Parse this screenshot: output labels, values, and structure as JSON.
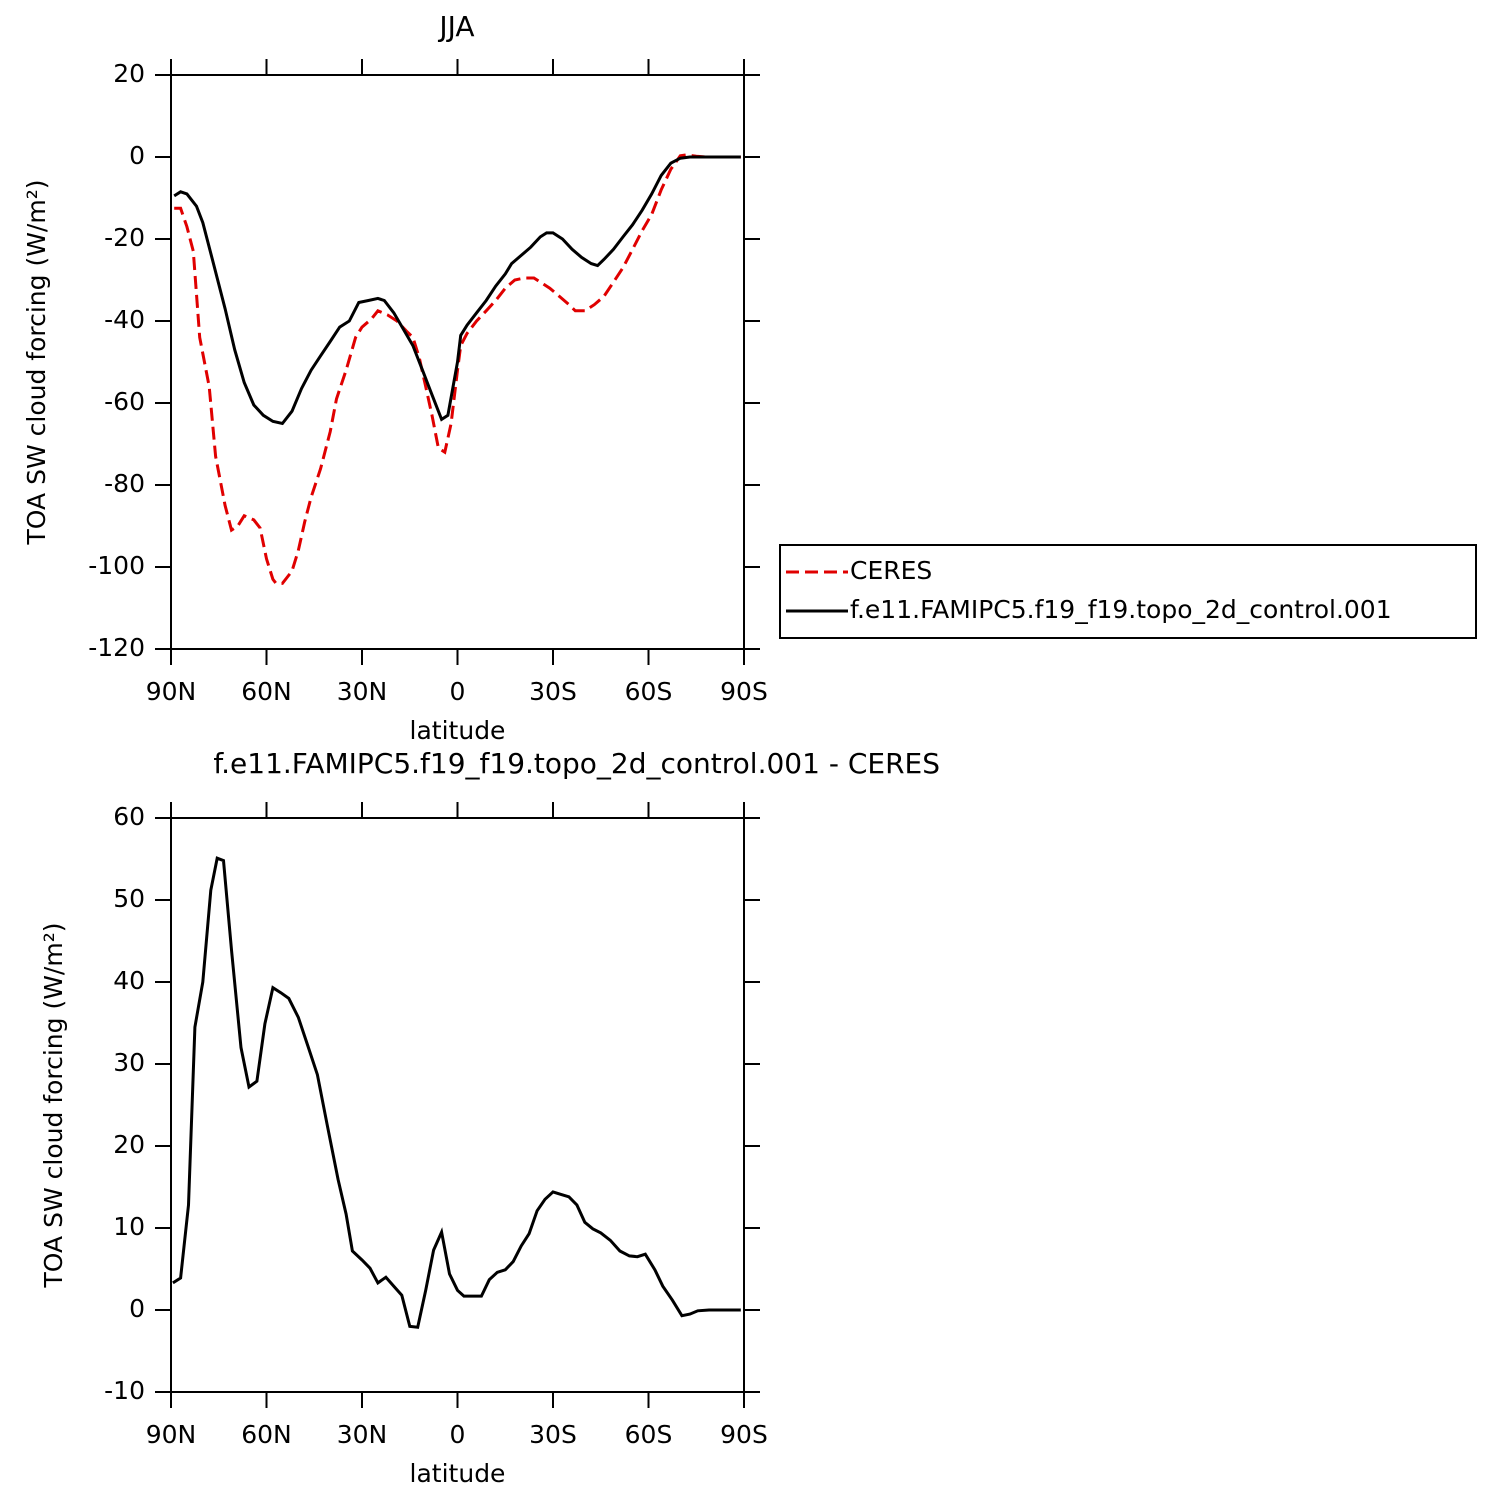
{
  "chart_data": [
    {
      "type": "line",
      "title": "JJA",
      "xlabel": "latitude",
      "ylabel": "TOA SW cloud forcing (W/m²)",
      "xlim": [
        90,
        -90
      ],
      "ylim": [
        20,
        -120
      ],
      "xticks": [
        {
          "value": 90,
          "label": "90N"
        },
        {
          "value": 60,
          "label": "60N"
        },
        {
          "value": 30,
          "label": "30N"
        },
        0,
        {
          "value": -30,
          "label": "30S"
        },
        {
          "value": -60,
          "label": "60S"
        },
        {
          "value": -90,
          "label": "90S"
        }
      ],
      "yticks": [
        20,
        0,
        -20,
        -40,
        -60,
        -80,
        -100,
        -120
      ],
      "legend": "right",
      "series": [
        {
          "name": "CERES",
          "color": "#e00000",
          "dash": true,
          "x": [
            89,
            87,
            85,
            83,
            81,
            78,
            76,
            73,
            71,
            69,
            67,
            64,
            62,
            60,
            58,
            57,
            55,
            52,
            50,
            48,
            46,
            43,
            40,
            38,
            35,
            32,
            30,
            27,
            25,
            22,
            19,
            16,
            14,
            12,
            10,
            8,
            6,
            4,
            2,
            0,
            -1,
            -3,
            -6,
            -9,
            -12,
            -15,
            -18,
            -21,
            -24,
            -26,
            -29,
            -32,
            -35,
            -37,
            -40,
            -43,
            -46,
            -49,
            -52,
            -55,
            -58,
            -61,
            -64,
            -67,
            -70,
            -72,
            -75,
            -78,
            -89
          ],
          "values": [
            -12.5,
            -12.5,
            -17,
            -23,
            -44,
            -56,
            -73,
            -85,
            -91,
            -90,
            -87.5,
            -88.5,
            -90.5,
            -98,
            -103,
            -104,
            -104,
            -101,
            -96,
            -89,
            -83,
            -76,
            -67,
            -59,
            -52,
            -44,
            -41.5,
            -39.5,
            -37.5,
            -38.5,
            -40,
            -42.5,
            -44,
            -49,
            -56,
            -63,
            -71,
            -72,
            -65,
            -52,
            -46,
            -43,
            -40,
            -37.5,
            -35,
            -32,
            -30,
            -29.5,
            -29.5,
            -30.5,
            -32,
            -34,
            -36,
            -37.5,
            -37.5,
            -36,
            -34,
            -30.5,
            -27,
            -22.5,
            -18,
            -14,
            -8,
            -3,
            0.3,
            0.5,
            0.2,
            0,
            0
          ]
        },
        {
          "name": "f.e11.FAMIPC5.f19_f19.topo_2d_control.001",
          "color": "#000000",
          "dash": false,
          "x": [
            89,
            87,
            85,
            82,
            80,
            77,
            73,
            70,
            67,
            64,
            61,
            58,
            55,
            52,
            49,
            46,
            43,
            40,
            37,
            34,
            31,
            28,
            25,
            23,
            20,
            17,
            14,
            11,
            8,
            5,
            3,
            0,
            -1,
            -3,
            -6,
            -9,
            -12,
            -15,
            -17,
            -20,
            -23,
            -26,
            -28,
            -30,
            -33,
            -36,
            -39,
            -42,
            -44,
            -46,
            -49,
            -52,
            -55,
            -58,
            -61,
            -64,
            -67,
            -70,
            -73,
            -89
          ],
          "values": [
            -9.5,
            -8.5,
            -9,
            -12,
            -16,
            -25,
            -37,
            -47,
            -55,
            -60.5,
            -63,
            -64.5,
            -65,
            -62,
            -56.5,
            -52,
            -48.5,
            -45,
            -41.5,
            -40,
            -35.5,
            -35,
            -34.5,
            -35,
            -38,
            -42,
            -46,
            -52,
            -58,
            -64,
            -63,
            -50,
            -43.5,
            -41,
            -38,
            -35,
            -31.5,
            -28.5,
            -26,
            -24,
            -22,
            -19.5,
            -18.5,
            -18.5,
            -20,
            -22.5,
            -24.5,
            -26,
            -26.5,
            -25,
            -22.5,
            -19.5,
            -16.5,
            -13,
            -9,
            -4.5,
            -1.5,
            -0.3,
            0,
            0
          ]
        }
      ]
    },
    {
      "type": "line",
      "title": "f.e11.FAMIPC5.f19_f19.topo_2d_control.001  -  CERES",
      "xlabel": "latitude",
      "ylabel": "TOA SW cloud forcing (W/m²)",
      "xlim": [
        90,
        -90
      ],
      "ylim": [
        60,
        -10
      ],
      "xticks": [
        {
          "value": 90,
          "label": "90N"
        },
        {
          "value": 60,
          "label": "60N"
        },
        {
          "value": 30,
          "label": "30N"
        },
        0,
        {
          "value": -30,
          "label": "30S"
        },
        {
          "value": -60,
          "label": "60S"
        },
        {
          "value": -90,
          "label": "90S"
        }
      ],
      "yticks": [
        60,
        50,
        40,
        30,
        20,
        10,
        0,
        -10
      ],
      "series": [
        {
          "color": "#000000",
          "dash": false,
          "x": [
            89.4,
            87,
            84.5,
            82.5,
            80,
            77.5,
            75.5,
            73.5,
            71,
            68,
            65.5,
            63,
            60.5,
            58,
            55.5,
            53,
            50,
            47,
            44,
            41,
            37.5,
            35,
            33,
            30,
            27.5,
            25,
            22.5,
            20,
            17.5,
            15,
            12.5,
            10,
            7.5,
            5,
            2.5,
            0,
            -2,
            -5,
            -7.5,
            -10,
            -12.5,
            -15,
            -17.5,
            -20,
            -22.5,
            -25,
            -27.5,
            -30,
            -32.5,
            -35,
            -37.5,
            -40,
            -42.5,
            -45,
            -48,
            -51,
            -54,
            -56.5,
            -59,
            -62,
            -64.5,
            -67.5,
            -70.5,
            -73,
            -75.5,
            -79,
            -89
          ],
          "values": [
            3.3,
            3.9,
            12.8,
            34.5,
            40,
            51.2,
            55.1,
            54.8,
            43.9,
            32,
            27.2,
            27.9,
            34.9,
            39.3,
            38.7,
            38,
            35.7,
            32.2,
            28.7,
            22.7,
            15.9,
            11.7,
            7.2,
            6.1,
            5.1,
            3.3,
            4,
            2.9,
            1.8,
            -2,
            -2.1,
            2.4,
            7.3,
            9.5,
            4.4,
            2.4,
            1.7,
            1.7,
            1.7,
            3.7,
            4.6,
            4.9,
            5.9,
            7.8,
            9.3,
            12.1,
            13.5,
            14.4,
            14.1,
            13.8,
            12.8,
            10.7,
            9.9,
            9.4,
            8.5,
            7.2,
            6.6,
            6.5,
            6.8,
            4.9,
            2.9,
            1.2,
            -0.7,
            -0.5,
            -0.1,
            0,
            0
          ]
        }
      ]
    }
  ]
}
